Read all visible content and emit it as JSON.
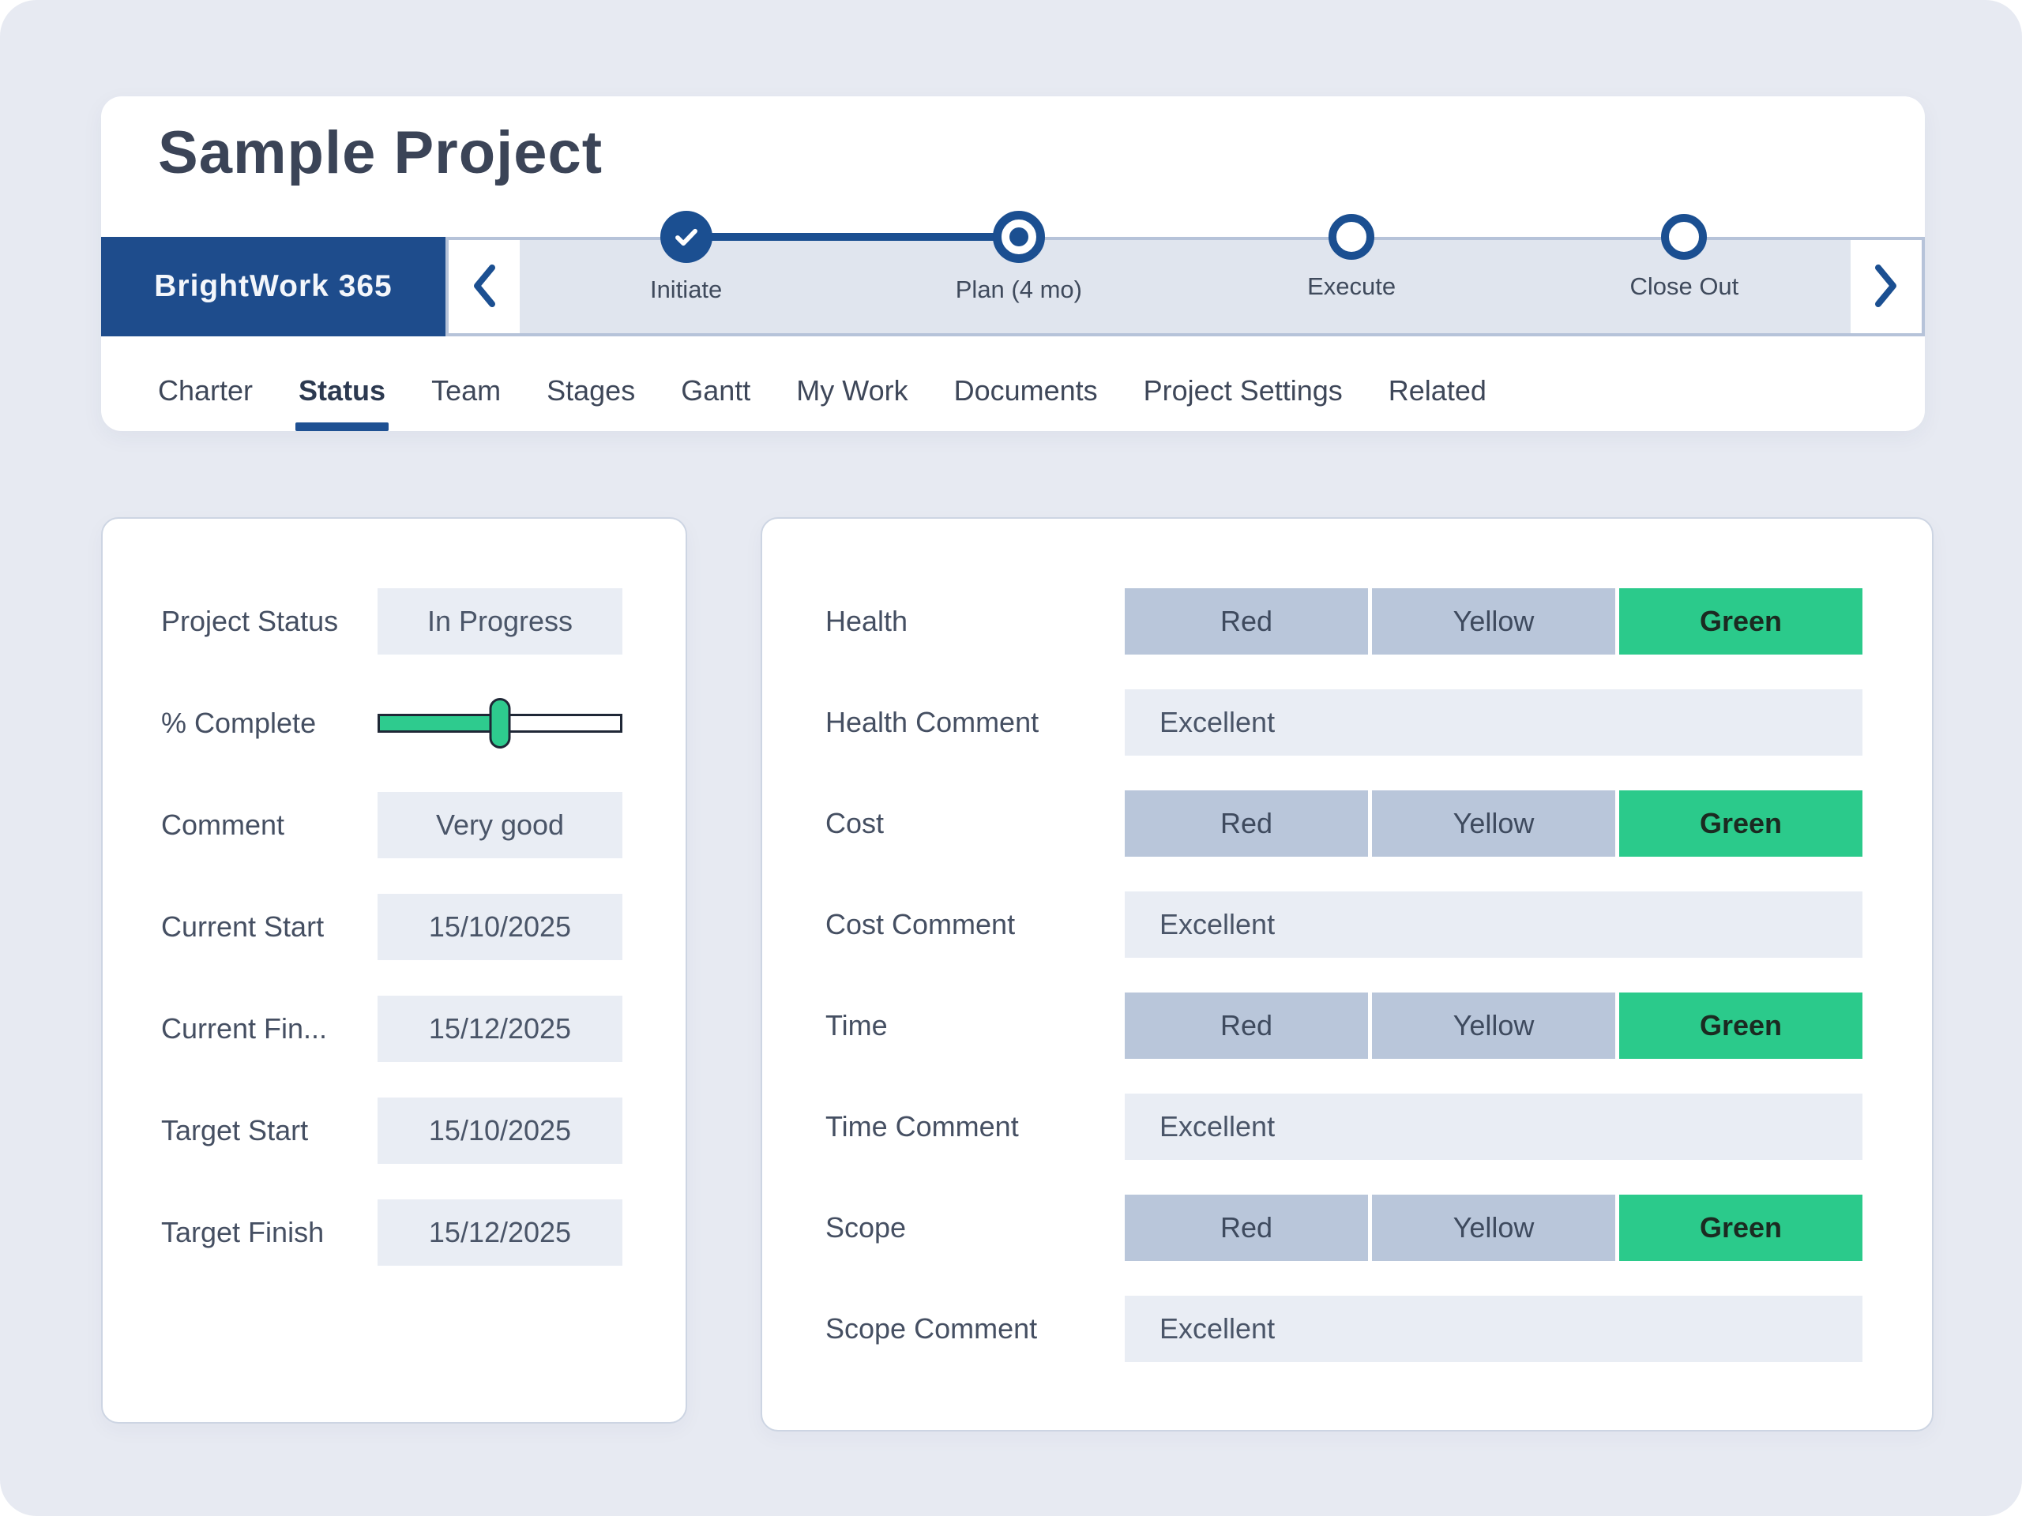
{
  "page": {
    "title": "Sample Project",
    "brand": "BrightWork 365"
  },
  "stepper": {
    "steps": [
      {
        "label": "Initiate",
        "state": "completed"
      },
      {
        "label": "Plan (4 mo)",
        "state": "current"
      },
      {
        "label": "Execute",
        "state": "upcoming"
      },
      {
        "label": "Close Out",
        "state": "upcoming"
      }
    ]
  },
  "tabs": [
    {
      "label": "Charter",
      "active": false
    },
    {
      "label": "Status",
      "active": true
    },
    {
      "label": "Team",
      "active": false
    },
    {
      "label": "Stages",
      "active": false
    },
    {
      "label": "Gantt",
      "active": false
    },
    {
      "label": "My Work",
      "active": false
    },
    {
      "label": "Documents",
      "active": false
    },
    {
      "label": "Project Settings",
      "active": false
    },
    {
      "label": "Related",
      "active": false
    }
  ],
  "left_panel": {
    "fields": [
      {
        "label": "Project Status",
        "type": "value",
        "value": "In Progress"
      },
      {
        "label": "% Complete",
        "type": "slider",
        "percent": 50
      },
      {
        "label": "Comment",
        "type": "value",
        "value": "Very good"
      },
      {
        "label": "Current Start",
        "type": "value",
        "value": "15/10/2025",
        "group_gap": true
      },
      {
        "label": "Current Fin...",
        "type": "value",
        "value": "15/12/2025"
      },
      {
        "label": "Target Start",
        "type": "value",
        "value": "15/10/2025"
      },
      {
        "label": "Target Finish",
        "type": "value",
        "value": "15/12/2025"
      }
    ]
  },
  "right_panel": {
    "options": [
      "Red",
      "Yellow",
      "Green"
    ],
    "rows": [
      {
        "label": "Health",
        "type": "rag",
        "selected": "Green"
      },
      {
        "label": "Health Comment",
        "type": "comment",
        "value": "Excellent"
      },
      {
        "label": "Cost",
        "type": "rag",
        "selected": "Green"
      },
      {
        "label": "Cost Comment",
        "type": "comment",
        "value": "Excellent"
      },
      {
        "label": "Time",
        "type": "rag",
        "selected": "Green"
      },
      {
        "label": "Time Comment",
        "type": "comment",
        "value": "Excellent"
      },
      {
        "label": "Scope",
        "type": "rag",
        "selected": "Green"
      },
      {
        "label": "Scope Comment",
        "type": "comment",
        "value": "Excellent"
      }
    ]
  },
  "colors": {
    "brand_blue": "#1e4c8c",
    "stepper_blue": "#1b4f91",
    "tab_underline": "#1f5193",
    "rag_green": "#2bca8b",
    "rag_gray": "#b9c6da",
    "field_bg": "#e9edf4",
    "slider_green": "#2ecb8e",
    "background": "#e7eaf2"
  }
}
